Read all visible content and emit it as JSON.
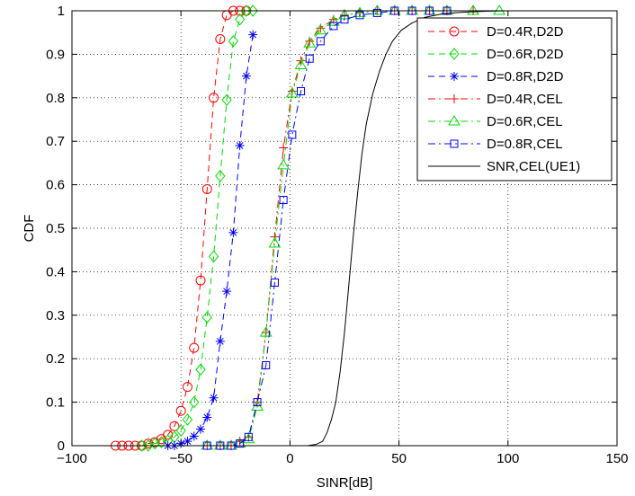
{
  "chart_data": {
    "type": "line",
    "title": "",
    "xlabel": "SINR[dB]",
    "ylabel": "CDF",
    "xlim": [
      -100,
      150
    ],
    "ylim": [
      0,
      1
    ],
    "xticks": [
      -100,
      -50,
      0,
      50,
      100,
      150
    ],
    "yticks": [
      0,
      0.1,
      0.2,
      0.3,
      0.4,
      0.5,
      0.6,
      0.7,
      0.8,
      0.9,
      1
    ],
    "xtick_labels": [
      "−100",
      "−50",
      "0",
      "50",
      "100",
      "150"
    ],
    "ytick_labels": [
      "0",
      "0.1",
      "0.2",
      "0.3",
      "0.4",
      "0.5",
      "0.6",
      "0.7",
      "0.8",
      "0.9",
      "1"
    ],
    "grid": true,
    "legend_position": "top-right",
    "series": [
      {
        "name": "D=0.4R,D2D",
        "color": "#ff0000",
        "dash": "dashed",
        "marker": "circle",
        "x": [
          -80,
          -77,
          -74,
          -71,
          -68,
          -65,
          -62,
          -59,
          -56,
          -53,
          -50,
          -47,
          -44,
          -41,
          -38,
          -35,
          -32,
          -29,
          -26,
          -23,
          -20
        ],
        "y": [
          0,
          0,
          0,
          0,
          0,
          0.005,
          0.008,
          0.015,
          0.025,
          0.045,
          0.08,
          0.135,
          0.225,
          0.38,
          0.59,
          0.8,
          0.935,
          0.99,
          1,
          1,
          1
        ]
      },
      {
        "name": "D=0.6R,D2D",
        "color": "#00dd00",
        "dash": "dashed",
        "marker": "diamond",
        "x": [
          -68,
          -65,
          -62,
          -59,
          -56,
          -53,
          -50,
          -47,
          -44,
          -41,
          -38,
          -35,
          -32,
          -29,
          -26,
          -23,
          -20,
          -17
        ],
        "y": [
          0,
          0,
          0.005,
          0.008,
          0.012,
          0.02,
          0.035,
          0.06,
          0.1,
          0.175,
          0.295,
          0.435,
          0.62,
          0.795,
          0.93,
          0.98,
          1,
          1
        ]
      },
      {
        "name": "D=0.8R,D2D",
        "color": "#0000ff",
        "dash": "dashed",
        "marker": "star",
        "x": [
          -56,
          -53,
          -50,
          -47,
          -44,
          -41,
          -38,
          -35,
          -32,
          -29,
          -26,
          -23,
          -20,
          -17
        ],
        "y": [
          0,
          0,
          0.005,
          0.01,
          0.022,
          0.038,
          0.065,
          0.11,
          0.24,
          0.355,
          0.49,
          0.69,
          0.85,
          0.945
        ]
      },
      {
        "name": "D=0.4R,CEL",
        "color": "#ff0000",
        "dash": "dashdot",
        "marker": "plus",
        "x": [
          -38,
          -32,
          -27,
          -23,
          -19,
          -15,
          -11,
          -7,
          -3,
          1,
          5,
          9,
          14,
          20,
          25,
          32,
          40,
          48,
          56,
          64,
          72,
          84
        ],
        "y": [
          0,
          0,
          0,
          0.01,
          0.02,
          0.1,
          0.26,
          0.48,
          0.685,
          0.815,
          0.885,
          0.93,
          0.96,
          0.98,
          0.99,
          0.995,
          1,
          1,
          1,
          1,
          1,
          1
        ]
      },
      {
        "name": "D=0.6R,CEL",
        "color": "#00dd00",
        "dash": "dashdot",
        "marker": "triangle",
        "x": [
          -38,
          -32,
          -27,
          -23,
          -19,
          -15,
          -11,
          -7,
          -3,
          1,
          5,
          9,
          14,
          20,
          25,
          32,
          40,
          48,
          56,
          64,
          72,
          84,
          96
        ],
        "y": [
          0,
          0,
          0,
          0.005,
          0.015,
          0.09,
          0.26,
          0.465,
          0.645,
          0.81,
          0.875,
          0.925,
          0.955,
          0.975,
          0.99,
          0.995,
          1,
          1,
          1,
          1,
          1,
          1,
          1
        ]
      },
      {
        "name": "D=0.8R,CEL",
        "color": "#0000ff",
        "dash": "dashdot",
        "marker": "square",
        "x": [
          -38,
          -32,
          -27,
          -23,
          -19,
          -15,
          -11,
          -7,
          -3,
          1,
          5,
          9,
          14,
          20,
          25,
          32,
          40,
          48,
          56,
          64,
          72
        ],
        "y": [
          0,
          0,
          0,
          0.005,
          0.02,
          0.1,
          0.185,
          0.375,
          0.565,
          0.715,
          0.815,
          0.89,
          0.93,
          0.965,
          0.98,
          0.99,
          0.995,
          1,
          1,
          1,
          1
        ]
      },
      {
        "name": "SNR,CEL(UE1)",
        "color": "#000000",
        "dash": "solid",
        "marker": "none",
        "x": [
          8,
          12,
          15,
          17,
          19,
          21,
          23,
          25,
          27,
          29,
          31,
          33,
          35,
          38,
          41,
          44,
          47,
          51,
          56,
          62,
          70,
          80,
          90,
          100,
          115,
          125
        ],
        "y": [
          0,
          0.003,
          0.01,
          0.03,
          0.06,
          0.1,
          0.17,
          0.26,
          0.37,
          0.48,
          0.58,
          0.67,
          0.74,
          0.81,
          0.86,
          0.9,
          0.93,
          0.955,
          0.972,
          0.985,
          0.993,
          0.997,
          0.999,
          1,
          1,
          1
        ]
      }
    ]
  }
}
